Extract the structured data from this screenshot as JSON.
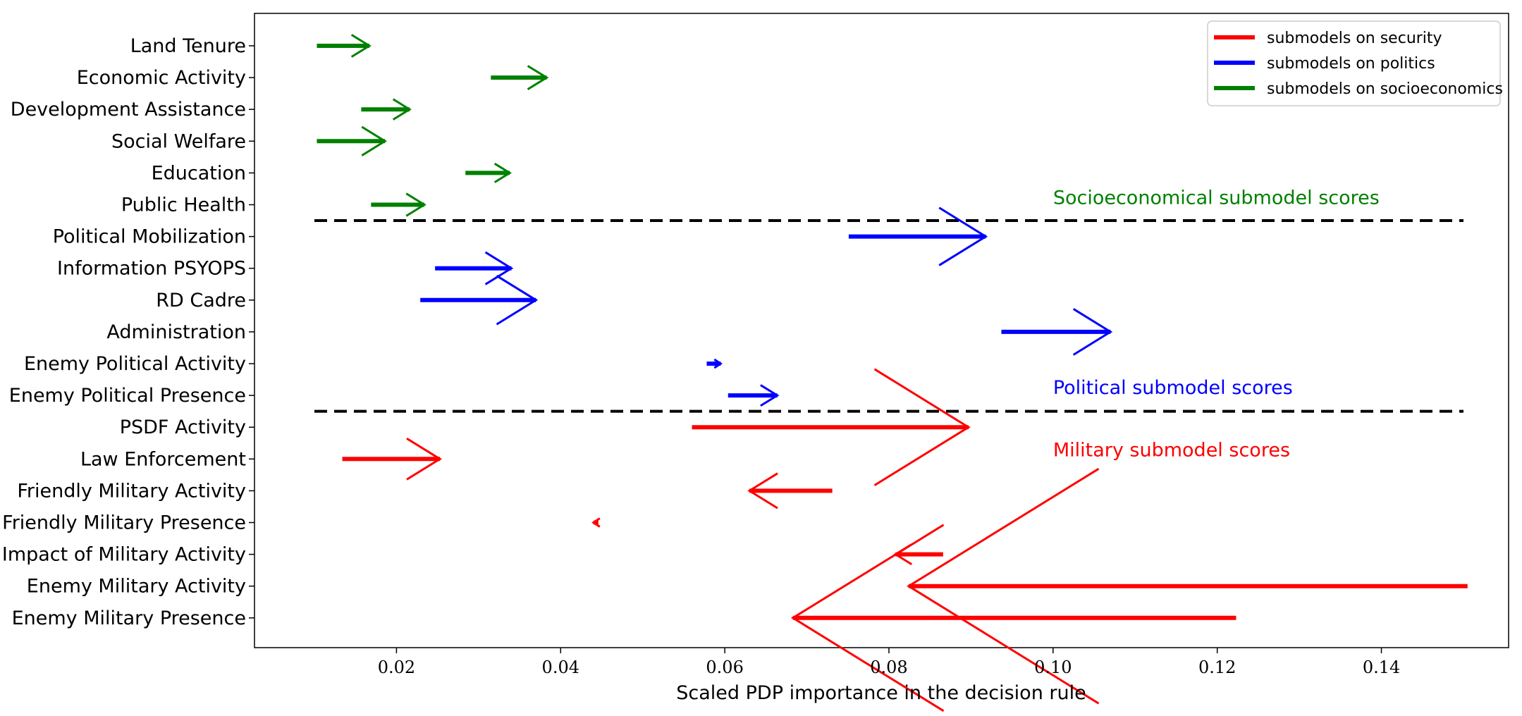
{
  "chart_data": {
    "type": "arrow",
    "title": "",
    "xlabel": "Scaled PDP importance in the decision rule",
    "ylabel": "",
    "xlim": [
      0.0027,
      0.1555
    ],
    "xticks": [
      0.02,
      0.04,
      0.06,
      0.08,
      0.1,
      0.12,
      0.14
    ],
    "xtick_labels": [
      "0.02",
      "0.04",
      "0.06",
      "0.08",
      "0.10",
      "0.12",
      "0.14"
    ],
    "grid": false,
    "legend_position": "top-right",
    "legend": [
      {
        "label": "submodels on security",
        "color": "#ff0000"
      },
      {
        "label": "submodels on politics",
        "color": "#0000ff"
      },
      {
        "label": "submodels on socioeconomics",
        "color": "#008000"
      }
    ],
    "categories": [
      "Land Tenure",
      "Economic Activity",
      "Development Assistance",
      "Social Welfare",
      "Education",
      "Public Health",
      "Political Mobilization",
      "Information PSYOPS",
      "RD Cadre",
      "Administration",
      "Enemy Political Activity",
      "Enemy Political Presence",
      "PSDF Activity",
      "Law Enforcement",
      "Friendly Military Activity",
      "Friendly Military Presence",
      "Impact of Military Activity",
      "Enemy Military Activity",
      "Enemy Military Presence"
    ],
    "arrows": [
      {
        "label": "Land Tenure",
        "group": "socioeconomics",
        "start": 0.0103,
        "end": 0.0167,
        "color": "#008000"
      },
      {
        "label": "Economic Activity",
        "group": "socioeconomics",
        "start": 0.0315,
        "end": 0.0383,
        "color": "#008000"
      },
      {
        "label": "Development Assistance",
        "group": "socioeconomics",
        "start": 0.0157,
        "end": 0.0216,
        "color": "#008000"
      },
      {
        "label": "Social Welfare",
        "group": "socioeconomics",
        "start": 0.0103,
        "end": 0.0186,
        "color": "#008000"
      },
      {
        "label": "Education",
        "group": "socioeconomics",
        "start": 0.0284,
        "end": 0.0338,
        "color": "#008000"
      },
      {
        "label": "Public Health",
        "group": "socioeconomics",
        "start": 0.0169,
        "end": 0.0234,
        "color": "#008000"
      },
      {
        "label": "Political Mobilization",
        "group": "politics",
        "start": 0.0751,
        "end": 0.0918,
        "color": "#0000ff"
      },
      {
        "label": "Information PSYOPS",
        "group": "politics",
        "start": 0.0247,
        "end": 0.034,
        "color": "#0000ff"
      },
      {
        "label": "RD Cadre",
        "group": "politics",
        "start": 0.0229,
        "end": 0.037,
        "color": "#0000ff"
      },
      {
        "label": "Administration",
        "group": "politics",
        "start": 0.0937,
        "end": 0.107,
        "color": "#0000ff"
      },
      {
        "label": "Enemy Political Activity",
        "group": "politics",
        "start": 0.0578,
        "end": 0.0595,
        "color": "#0000ff"
      },
      {
        "label": "Enemy Political Presence",
        "group": "politics",
        "start": 0.0604,
        "end": 0.0664,
        "color": "#0000ff"
      },
      {
        "label": "PSDF Activity",
        "group": "security",
        "start": 0.056,
        "end": 0.0897,
        "color": "#ff0000"
      },
      {
        "label": "Law Enforcement",
        "group": "security",
        "start": 0.0134,
        "end": 0.0253,
        "color": "#ff0000"
      },
      {
        "label": "Friendly Military Activity",
        "group": "security",
        "start": 0.0731,
        "end": 0.063,
        "color": "#ff0000"
      },
      {
        "label": "Friendly Military Presence",
        "group": "security",
        "start": 0.0446,
        "end": 0.044,
        "color": "#ff0000"
      },
      {
        "label": "Impact of Military Activity",
        "group": "security",
        "start": 0.0866,
        "end": 0.0808,
        "color": "#ff0000"
      },
      {
        "label": "Enemy Military Activity",
        "group": "security",
        "start": 0.1505,
        "end": 0.0824,
        "color": "#ff0000"
      },
      {
        "label": "Enemy Military Presence",
        "group": "security",
        "start": 0.1223,
        "end": 0.0683,
        "color": "#ff0000"
      }
    ],
    "separators": [
      {
        "between": [
          "Public Health",
          "Political Mobilization"
        ],
        "x_from": 0.01,
        "x_to": 0.15,
        "style": "dashed",
        "color": "#000000"
      },
      {
        "between": [
          "Enemy Political Presence",
          "PSDF Activity"
        ],
        "x_from": 0.01,
        "x_to": 0.15,
        "style": "dashed",
        "color": "#000000"
      }
    ],
    "annotations": [
      {
        "text": "Socioeconomical submodel scores",
        "color": "#008000"
      },
      {
        "text": "Political submodel scores",
        "color": "#0000ff"
      },
      {
        "text": "Military submodel scores",
        "color": "#ff0000"
      }
    ]
  }
}
